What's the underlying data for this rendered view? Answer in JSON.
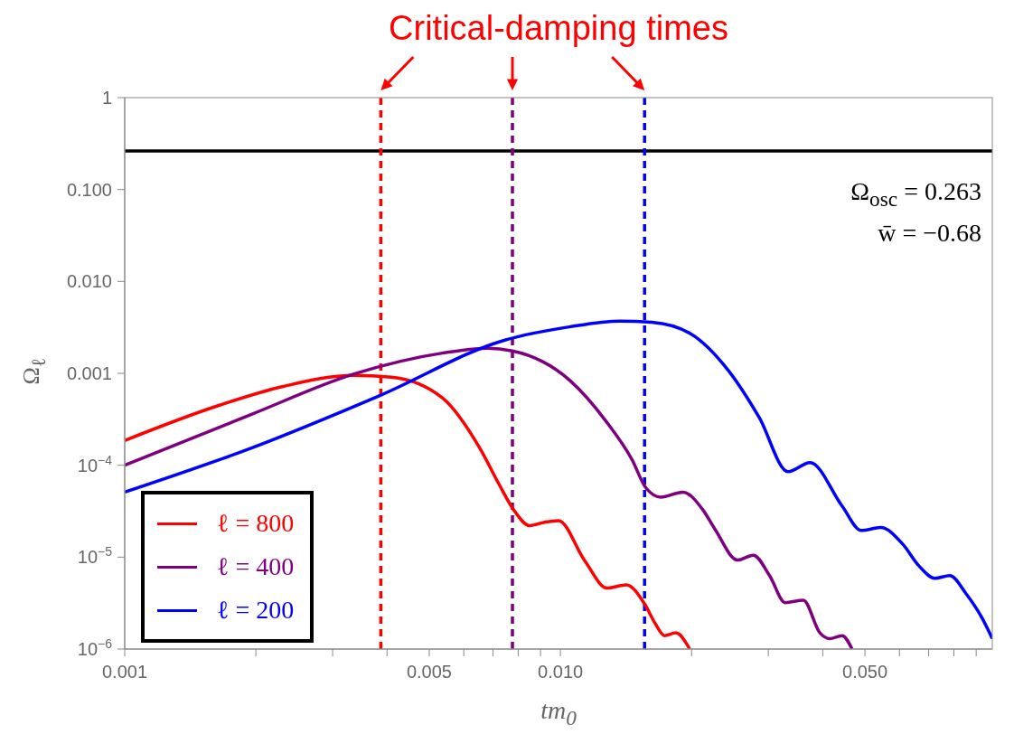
{
  "chart_data": {
    "type": "line",
    "title": "Critical-damping times",
    "xlabel": "tm$_{0}$",
    "ylabel": "Ω$_{ℓ}$",
    "log": "xy",
    "legend": "bottom left",
    "marker": "none",
    "line_style": "solid",
    "xlim": [
      0.001,
      0.098
    ],
    "ylim": [
      1e-06,
      1
    ],
    "xticks": [
      {
        "value": 0.001,
        "label": "0.001"
      },
      {
        "value": 0.002,
        "label": null
      },
      {
        "value": 0.003,
        "label": null
      },
      {
        "value": 0.004,
        "label": null
      },
      {
        "value": 0.005,
        "label": "0.005"
      },
      {
        "value": 0.006,
        "label": null
      },
      {
        "value": 0.007,
        "label": null
      },
      {
        "value": 0.008,
        "label": null
      },
      {
        "value": 0.009,
        "label": null
      },
      {
        "value": 0.01,
        "label": "0.010"
      },
      {
        "value": 0.02,
        "label": null
      },
      {
        "value": 0.03,
        "label": null
      },
      {
        "value": 0.04,
        "label": null
      },
      {
        "value": 0.05,
        "label": "0.050"
      },
      {
        "value": 0.06,
        "label": null
      },
      {
        "value": 0.07,
        "label": null
      },
      {
        "value": 0.08,
        "label": null
      },
      {
        "value": 0.09,
        "label": null
      }
    ],
    "yticks": [
      {
        "value": 1,
        "label": "1"
      },
      {
        "value": 0.1,
        "label": "0.100"
      },
      {
        "value": 0.01,
        "label": "0.010"
      },
      {
        "value": 0.001,
        "label": "0.001"
      },
      {
        "value": 0.0001,
        "label": "10$^{−4}$"
      },
      {
        "value": 1e-05,
        "label": "10$^{−5}$"
      },
      {
        "value": 1e-06,
        "label": "10$^{−6}$"
      }
    ],
    "series": [
      {
        "name": "ℓ = 800",
        "color": "#ff0000",
        "x": [
          0.001,
          0.00165,
          0.00231,
          0.00335,
          0.00409,
          0.00536,
          0.00655,
          0.00723,
          0.0078,
          0.0085,
          0.0092,
          0.0099,
          0.01136,
          0.0128,
          0.01416,
          0.0156,
          0.0165,
          0.01733,
          0.0184,
          0.0198
        ],
        "values": [
          0.000186,
          0.00045,
          0.00072,
          0.00095,
          0.00091,
          0.00054,
          0.00015,
          6.2e-05,
          3.3e-05,
          2.2e-05,
          2.4e-05,
          2.5e-05,
          9.2e-06,
          4.6e-06,
          5e-06,
          3.1e-06,
          1.9e-06,
          1.4e-06,
          1.5e-06,
          1e-06
        ]
      },
      {
        "name": "ℓ = 400",
        "color": "#7f007f",
        "x": [
          0.001,
          0.00196,
          0.00335,
          0.00536,
          0.00678,
          0.00776,
          0.01047,
          0.0128,
          0.0146,
          0.0157,
          0.017,
          0.0191,
          0.0212,
          0.02265,
          0.0255,
          0.0277,
          0.0302,
          0.0328,
          0.0361,
          0.0394,
          0.0415,
          0.0443,
          0.0467
        ],
        "values": [
          0.0001,
          0.00036,
          0.00098,
          0.00166,
          0.00187,
          0.00175,
          0.00085,
          0.00029,
          0.000115,
          5.7e-05,
          4.5e-05,
          5.1e-05,
          3.3e-05,
          2e-05,
          9.3e-06,
          1.05e-05,
          6.3e-06,
          3.2e-06,
          3.4e-06,
          1.5e-06,
          1.3e-06,
          1.4e-06,
          1e-06
        ]
      },
      {
        "name": "ℓ = 200",
        "color": "#0000ff",
        "x": [
          0.001,
          0.00196,
          0.00384,
          0.00746,
          0.01047,
          0.0137,
          0.0162,
          0.0199,
          0.0242,
          0.0286,
          0.0333,
          0.0374,
          0.0443,
          0.049,
          0.0543,
          0.0611,
          0.0664,
          0.0723,
          0.0783,
          0.0853,
          0.0927,
          0.098
        ],
        "values": [
          5.1e-05,
          0.000155,
          0.00057,
          0.0023,
          0.0032,
          0.0037,
          0.0036,
          0.0027,
          0.0011,
          0.00033,
          8.5e-05,
          0.000107,
          3.6e-05,
          1.95e-05,
          2.1e-05,
          1.38e-05,
          8.1e-06,
          5.9e-06,
          6.3e-06,
          4e-06,
          2.2e-06,
          1.3e-06
        ]
      }
    ],
    "ref_lines": [
      {
        "axis": "y",
        "value": 0.263,
        "color": "#000000",
        "line_style": "solid"
      },
      {
        "axis": "x",
        "value": 0.00387,
        "color": "#ff0000",
        "line_style": "dashed"
      },
      {
        "axis": "x",
        "value": 0.00776,
        "color": "#7f007f",
        "line_style": "dashed"
      },
      {
        "axis": "x",
        "value": 0.0156,
        "color": "#0000ff",
        "line_style": "dashed"
      }
    ],
    "annotations": [
      "Ω$_{osc}$ = 0.263",
      "w̄ = −0.68"
    ]
  }
}
